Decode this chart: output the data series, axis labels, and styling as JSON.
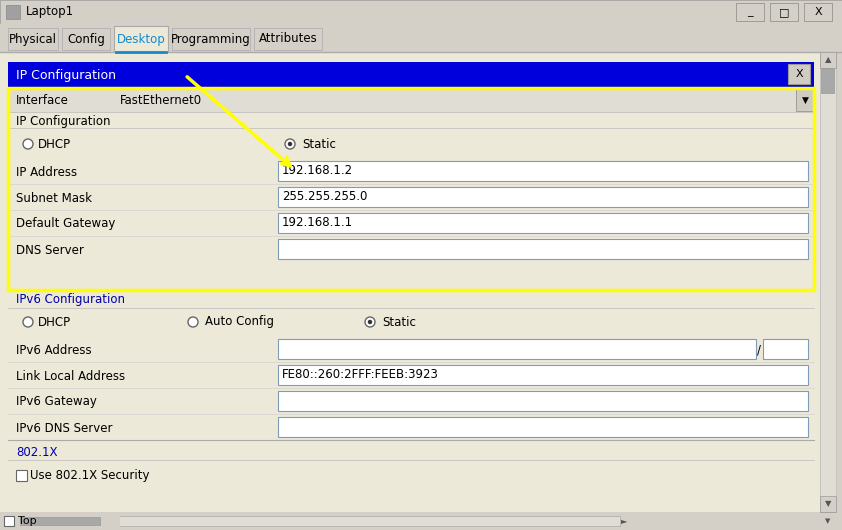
{
  "title_bar": "Laptop1",
  "tabs": [
    "Physical",
    "Config",
    "Desktop",
    "Programming",
    "Attributes"
  ],
  "active_tab": "Desktop",
  "blue_header": "IP Configuration",
  "interface_label": "Interface",
  "interface_value": "FastEthernet0",
  "ip_config_section": "IP Configuration",
  "dhcp_label": "DHCP",
  "static_label": "Static",
  "ip_address_label": "IP Address",
  "ip_address_value": "192.168.1.2",
  "subnet_mask_label": "Subnet Mask",
  "subnet_mask_value": "255.255.255.0",
  "default_gateway_label": "Default Gateway",
  "default_gateway_value": "192.168.1.1",
  "dns_server_label": "DNS Server",
  "dns_server_value": "",
  "ipv6_config_section": "IPv6 Configuration",
  "ipv6_dhcp_label": "DHCP",
  "ipv6_auto_label": "Auto Config",
  "ipv6_static_label": "Static",
  "ipv6_address_label": "IPv6 Address",
  "ipv6_address_value": "",
  "link_local_label": "Link Local Address",
  "link_local_value": "FE80::260:2FFF:FEEB:3923",
  "ipv6_gateway_label": "IPv6 Gateway",
  "ipv6_gateway_value": "",
  "ipv6_dns_label": "IPv6 DNS Server",
  "ipv6_dns_value": "",
  "dot1x_section": "802.1X",
  "dot1x_checkbox": "Use 802.1X Security",
  "bottom_label": "Top",
  "bg_outer": "#d4d0c8",
  "bg_inner": "#ece9d8",
  "blue_color": "#0000dd",
  "white": "#ffffff",
  "yellow_border": "#ffff00",
  "tab_active_color": "#1589cc",
  "field_bg": "#ffffff",
  "field_border": "#7f9db9",
  "arrow_color": "#ffff00",
  "scrollbar_bg": "#d4d0c8",
  "scrollbar_thumb": "#a8a8a8",
  "interface_row_bg": "#e0ddd5",
  "section_blue": "#0000aa",
  "separator_color": "#aaaaaa",
  "tab_bg": "#ece9d8",
  "title_bg": "#d4d0c8",
  "content_bg": "#ece9d8"
}
